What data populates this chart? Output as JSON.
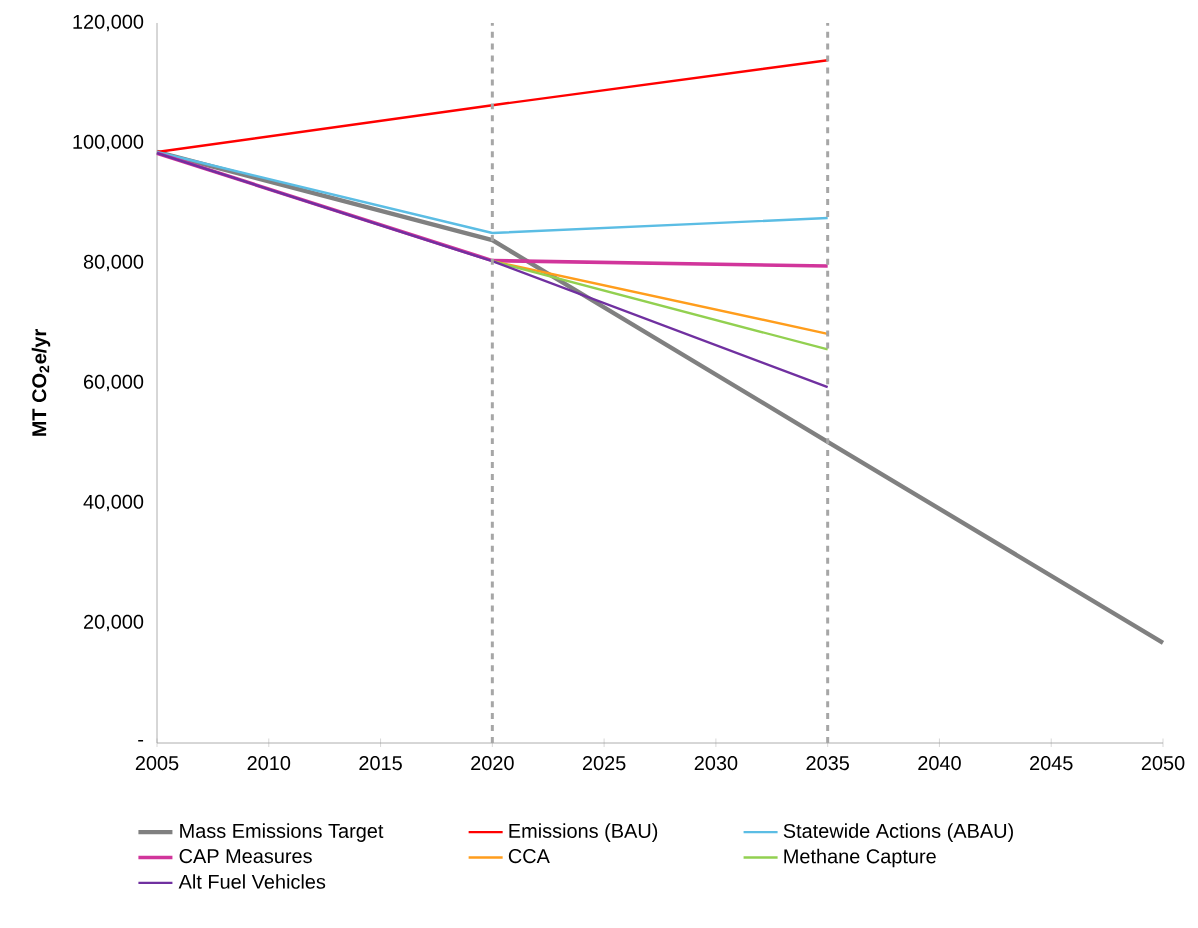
{
  "chart_data": {
    "type": "line",
    "ylabel": "MT CO$_{2}$e/yr",
    "x": [
      2005,
      2020,
      2035,
      2050
    ],
    "series": [
      {
        "name": "Mass Emissions Target",
        "color": "#808080",
        "values": [
          98500,
          83800,
          50200,
          16700
        ]
      },
      {
        "name": "Emissions (BAU)",
        "color": "#ff0000",
        "values": [
          98500,
          106300,
          113800,
          null
        ]
      },
      {
        "name": "Statewide Actions (ABAU)",
        "color": "#5bbde4",
        "values": [
          98500,
          85000,
          87500,
          null
        ]
      },
      {
        "name": "CAP Measures",
        "color": "#d1359b",
        "values": [
          98300,
          80400,
          79500,
          null
        ]
      },
      {
        "name": "CCA",
        "color": "#ff9d1c",
        "values": [
          null,
          80300,
          68200,
          null
        ]
      },
      {
        "name": "Methane Capture",
        "color": "#92d050",
        "values": [
          null,
          80300,
          65600,
          null
        ]
      },
      {
        "name": "Alt Fuel Vehicles",
        "color": "#7030a0",
        "values": [
          98300,
          80300,
          59300,
          null
        ]
      }
    ],
    "xlim": [
      2005,
      2050
    ],
    "xticks": [
      2005,
      2010,
      2015,
      2020,
      2025,
      2030,
      2035,
      2040,
      2045,
      2050
    ],
    "ylim": [
      0,
      120000
    ],
    "yticks": [
      {
        "value": 0,
        "label": "-"
      },
      {
        "value": 20000,
        "label": "20,000"
      },
      {
        "value": 40000,
        "label": "40,000"
      },
      {
        "value": 60000,
        "label": "60,000"
      },
      {
        "value": 80000,
        "label": "80,000"
      },
      {
        "value": 100000,
        "label": "100,000"
      },
      {
        "value": 120000,
        "label": "120,000"
      }
    ],
    "ref_lines": [
      {
        "axis": "x",
        "value": 2020,
        "color": "#a6a6a6",
        "line_style": "dashed"
      },
      {
        "axis": "x",
        "value": 2035,
        "color": "#a6a6a6",
        "line_style": "dashed"
      }
    ],
    "grid": false,
    "legend": "bottom",
    "marker": "none",
    "line_style": "solid"
  }
}
